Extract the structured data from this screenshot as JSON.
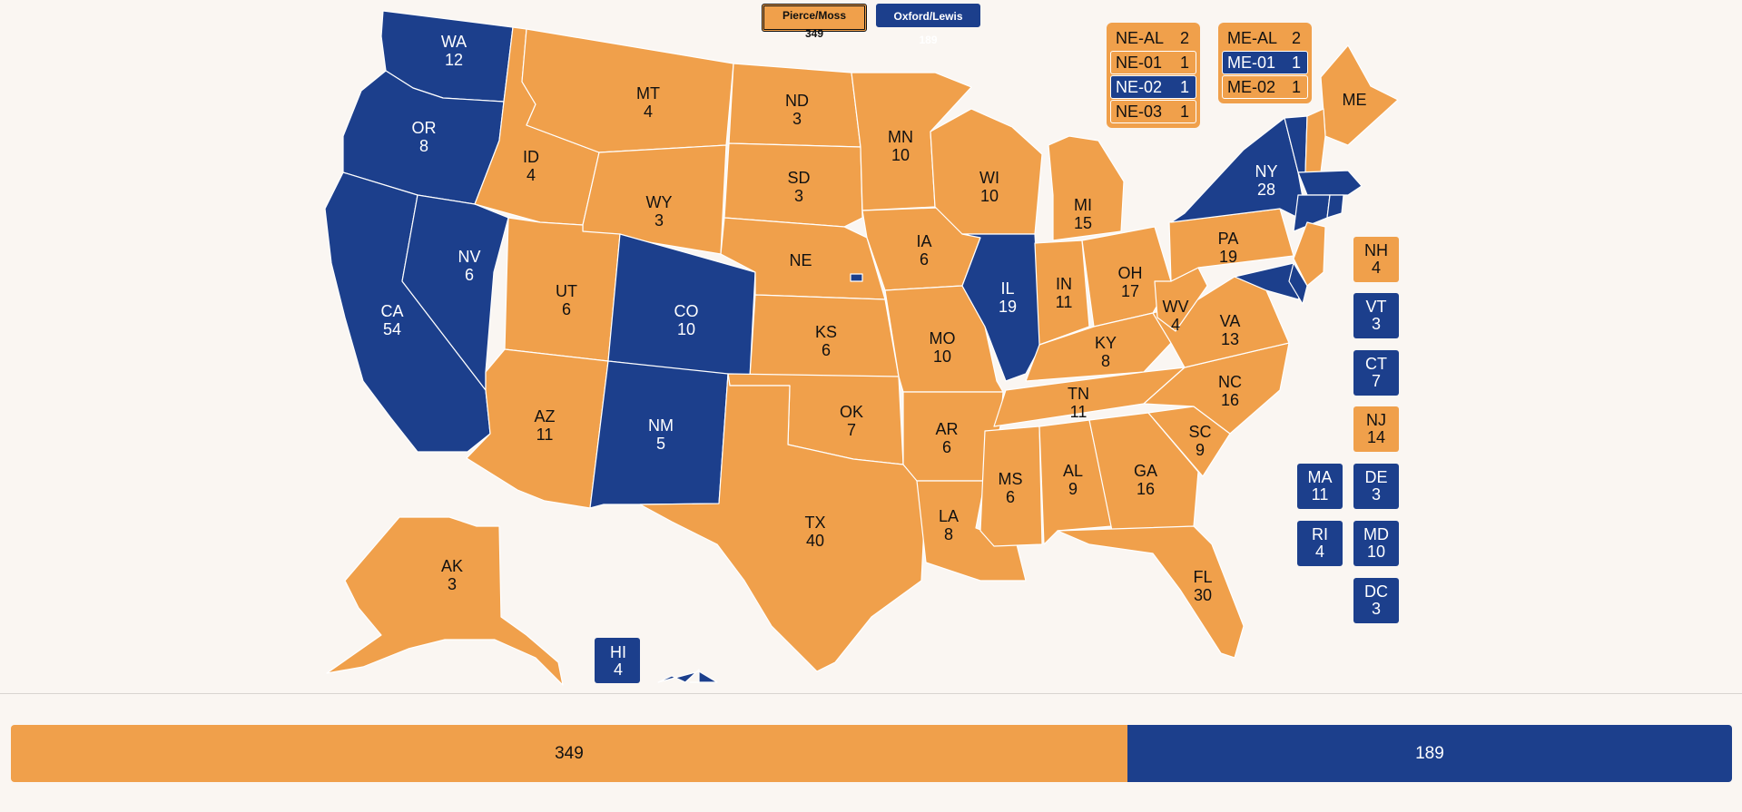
{
  "colors": {
    "pierce": "#f0a04b",
    "oxford": "#1c3f8c"
  },
  "legend": {
    "pierce": "Pierce/Moss 349",
    "oxford": "Oxford/Lewis 189"
  },
  "states": [
    {
      "abbr": "WA",
      "ev": "12",
      "winner": "oxford"
    },
    {
      "abbr": "OR",
      "ev": "8",
      "winner": "oxford"
    },
    {
      "abbr": "CA",
      "ev": "54",
      "winner": "oxford"
    },
    {
      "abbr": "NV",
      "ev": "6",
      "winner": "oxford"
    },
    {
      "abbr": "ID",
      "ev": "4",
      "winner": "pierce"
    },
    {
      "abbr": "MT",
      "ev": "4",
      "winner": "pierce"
    },
    {
      "abbr": "WY",
      "ev": "3",
      "winner": "pierce"
    },
    {
      "abbr": "UT",
      "ev": "6",
      "winner": "pierce"
    },
    {
      "abbr": "AZ",
      "ev": "11",
      "winner": "pierce"
    },
    {
      "abbr": "CO",
      "ev": "10",
      "winner": "oxford"
    },
    {
      "abbr": "NM",
      "ev": "5",
      "winner": "oxford"
    },
    {
      "abbr": "ND",
      "ev": "3",
      "winner": "pierce"
    },
    {
      "abbr": "SD",
      "ev": "3",
      "winner": "pierce"
    },
    {
      "abbr": "NE",
      "ev": "",
      "winner": "pierce"
    },
    {
      "abbr": "KS",
      "ev": "6",
      "winner": "pierce"
    },
    {
      "abbr": "OK",
      "ev": "7",
      "winner": "pierce"
    },
    {
      "abbr": "TX",
      "ev": "40",
      "winner": "pierce"
    },
    {
      "abbr": "MN",
      "ev": "10",
      "winner": "pierce"
    },
    {
      "abbr": "IA",
      "ev": "6",
      "winner": "pierce"
    },
    {
      "abbr": "MO",
      "ev": "10",
      "winner": "pierce"
    },
    {
      "abbr": "AR",
      "ev": "6",
      "winner": "pierce"
    },
    {
      "abbr": "LA",
      "ev": "8",
      "winner": "pierce"
    },
    {
      "abbr": "WI",
      "ev": "10",
      "winner": "pierce"
    },
    {
      "abbr": "IL",
      "ev": "19",
      "winner": "oxford"
    },
    {
      "abbr": "MI",
      "ev": "15",
      "winner": "pierce"
    },
    {
      "abbr": "IN",
      "ev": "11",
      "winner": "pierce"
    },
    {
      "abbr": "OH",
      "ev": "17",
      "winner": "pierce"
    },
    {
      "abbr": "KY",
      "ev": "8",
      "winner": "pierce"
    },
    {
      "abbr": "TN",
      "ev": "11",
      "winner": "pierce"
    },
    {
      "abbr": "MS",
      "ev": "6",
      "winner": "pierce"
    },
    {
      "abbr": "AL",
      "ev": "9",
      "winner": "pierce"
    },
    {
      "abbr": "GA",
      "ev": "16",
      "winner": "pierce"
    },
    {
      "abbr": "FL",
      "ev": "30",
      "winner": "pierce"
    },
    {
      "abbr": "SC",
      "ev": "9",
      "winner": "pierce"
    },
    {
      "abbr": "NC",
      "ev": "16",
      "winner": "pierce"
    },
    {
      "abbr": "VA",
      "ev": "13",
      "winner": "pierce"
    },
    {
      "abbr": "WV",
      "ev": "4",
      "winner": "pierce"
    },
    {
      "abbr": "PA",
      "ev": "19",
      "winner": "pierce"
    },
    {
      "abbr": "NY",
      "ev": "28",
      "winner": "oxford"
    },
    {
      "abbr": "ME",
      "ev": "",
      "winner": "pierce"
    },
    {
      "abbr": "AK",
      "ev": "3",
      "winner": "pierce"
    },
    {
      "abbr": "HI",
      "ev": "4",
      "winner": "oxford"
    }
  ],
  "ne_districts": [
    {
      "label": "NE-AL",
      "ev": "2",
      "winner": "pierce"
    },
    {
      "label": "NE-01",
      "ev": "1",
      "winner": "pierce"
    },
    {
      "label": "NE-02",
      "ev": "1",
      "winner": "oxford"
    },
    {
      "label": "NE-03",
      "ev": "1",
      "winner": "pierce"
    }
  ],
  "me_districts": [
    {
      "label": "ME-AL",
      "ev": "2",
      "winner": "pierce"
    },
    {
      "label": "ME-01",
      "ev": "1",
      "winner": "oxford"
    },
    {
      "label": "ME-02",
      "ev": "1",
      "winner": "pierce"
    }
  ],
  "small_states": [
    {
      "abbr": "NH",
      "ev": "4",
      "winner": "pierce"
    },
    {
      "abbr": "VT",
      "ev": "3",
      "winner": "oxford"
    },
    {
      "abbr": "CT",
      "ev": "7",
      "winner": "oxford"
    },
    {
      "abbr": "NJ",
      "ev": "14",
      "winner": "pierce"
    },
    {
      "abbr": "MA",
      "ev": "11",
      "winner": "oxford"
    },
    {
      "abbr": "DE",
      "ev": "3",
      "winner": "oxford"
    },
    {
      "abbr": "RI",
      "ev": "4",
      "winner": "oxford"
    },
    {
      "abbr": "MD",
      "ev": "10",
      "winner": "oxford"
    },
    {
      "abbr": "DC",
      "ev": "3",
      "winner": "oxford"
    }
  ],
  "totals": {
    "pierce": 349,
    "oxford": 189,
    "pierce_label": "349",
    "oxford_label": "189"
  }
}
